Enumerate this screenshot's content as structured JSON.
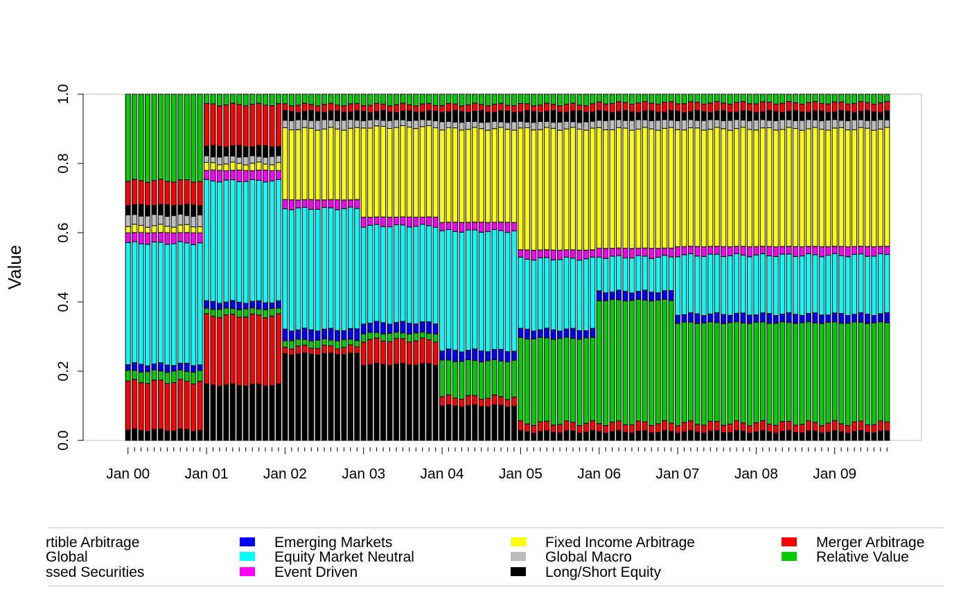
{
  "chart_data": {
    "type": "bar",
    "stacked": true,
    "xlabel": "",
    "ylabel": "Value",
    "ylim": [
      0,
      1
    ],
    "y_ticks": [
      "0.0",
      "0.2",
      "0.4",
      "0.6",
      "0.8",
      "1.0"
    ],
    "x_tick_labels": [
      "Jan 00",
      "Jan 01",
      "Jan 02",
      "Jan 03",
      "Jan 04",
      "Jan 05",
      "Jan 06",
      "Jan 07",
      "Jan 08",
      "Jan 09"
    ],
    "x_first_month": "2000-01",
    "num_months": 117,
    "regimes": [
      {
        "from": "2000-01",
        "to": "2000-12",
        "values": [
          0.03,
          0.0,
          0.0,
          0.14,
          0.03,
          0.02,
          0.35,
          0.03,
          0.02,
          0.03,
          0.03,
          0.07,
          0.25
        ]
      },
      {
        "from": "2001-01",
        "to": "2001-12",
        "values": [
          0.16,
          0.0,
          0.0,
          0.2,
          0.02,
          0.02,
          0.35,
          0.03,
          0.02,
          0.02,
          0.03,
          0.12,
          0.03
        ]
      },
      {
        "from": "2002-01",
        "to": "2002-12",
        "values": [
          0.25,
          0.0,
          0.0,
          0.02,
          0.02,
          0.03,
          0.35,
          0.025,
          0.205,
          0.025,
          0.025,
          0.02,
          0.03
        ]
      },
      {
        "from": "2003-01",
        "to": "2003-12",
        "values": [
          0.22,
          0.0,
          0.0,
          0.07,
          0.02,
          0.03,
          0.28,
          0.025,
          0.26,
          0.02,
          0.025,
          0.02,
          0.03
        ]
      },
      {
        "from": "2004-01",
        "to": "2004-12",
        "values": [
          0.1,
          0.0,
          0.0,
          0.025,
          0.105,
          0.03,
          0.345,
          0.025,
          0.27,
          0.02,
          0.03,
          0.02,
          0.03
        ]
      },
      {
        "from": "2005-01",
        "to": "2005-12",
        "values": [
          0.025,
          0.0,
          0.0,
          0.025,
          0.245,
          0.025,
          0.205,
          0.025,
          0.35,
          0.02,
          0.03,
          0.02,
          0.03
        ]
      },
      {
        "from": "2006-01",
        "to": "2006-12",
        "values": [
          0.025,
          0.0,
          0.0,
          0.025,
          0.355,
          0.025,
          0.1,
          0.025,
          0.345,
          0.025,
          0.025,
          0.025,
          0.025
        ]
      },
      {
        "from": "2007-01",
        "to": "2009-09",
        "values": [
          0.025,
          0.0,
          0.0,
          0.025,
          0.29,
          0.025,
          0.17,
          0.025,
          0.34,
          0.025,
          0.025,
          0.025,
          0.025
        ]
      }
    ],
    "series": [
      {
        "name": "Long/Short Equity",
        "color": "#000000"
      },
      {
        "name": "Convertible Arbitrage",
        "color": "#ffffff"
      },
      {
        "name": "Distressed Securities",
        "color": "#ffffff"
      },
      {
        "name": "Merger Arbitrage",
        "color": "#ff0000"
      },
      {
        "name": "Relative Value",
        "color": "#00cd00"
      },
      {
        "name": "Emerging Markets",
        "color": "#0000ff"
      },
      {
        "name": "Equity Market Neutral",
        "color": "#00ffff"
      },
      {
        "name": "Event Driven",
        "color": "#ff00ff"
      },
      {
        "name": "Fixed Income Arbitrage",
        "color": "#ffff00"
      },
      {
        "name": "Global Macro",
        "color": "#bebebe"
      },
      {
        "name": "Long/Short Equity",
        "color": "#000000"
      },
      {
        "name": "Merger Arbitrage",
        "color": "#ff0000"
      },
      {
        "name": "Relative Value",
        "color": "#00cd00"
      }
    ],
    "legend": {
      "placement": "bottom",
      "columns": [
        [
          {
            "label": "rtible Arbitrage",
            "color": "#ffffff"
          },
          {
            "label": "Global",
            "color": "#ffffff"
          },
          {
            "label": "ssed Securities",
            "color": "#ffffff"
          }
        ],
        [
          {
            "label": "Emerging Markets",
            "color": "#0000ff"
          },
          {
            "label": "Equity Market Neutral",
            "color": "#00ffff"
          },
          {
            "label": "Event Driven",
            "color": "#ff00ff"
          }
        ],
        [
          {
            "label": "Fixed Income Arbitrage",
            "color": "#ffff00"
          },
          {
            "label": "Global Macro",
            "color": "#bebebe"
          },
          {
            "label": "Long/Short Equity",
            "color": "#000000"
          }
        ],
        [
          {
            "label": "Merger Arbitrage",
            "color": "#ff0000"
          },
          {
            "label": "Relative Value",
            "color": "#00cd00"
          }
        ]
      ]
    }
  }
}
